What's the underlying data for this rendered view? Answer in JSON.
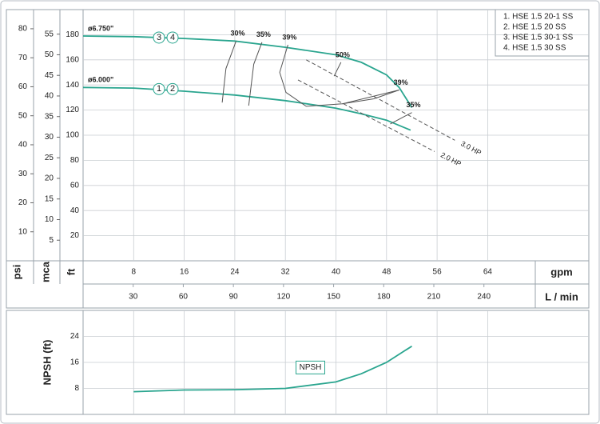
{
  "chart_data": [
    {
      "type": "line",
      "x_label": "gpm",
      "x2_label": "L / min",
      "y_label": "ft",
      "y2_label": "mca",
      "y3_label": "psi",
      "xlim": [
        0,
        80
      ],
      "xticks": [
        8,
        16,
        24,
        32,
        40,
        48,
        56,
        64
      ],
      "x2lim": [
        0,
        302.8
      ],
      "x2ticks": [
        30,
        60,
        90,
        120,
        150,
        180,
        210,
        240
      ],
      "ylim": [
        0,
        200
      ],
      "yticks": [
        20,
        40,
        60,
        80,
        100,
        120,
        140,
        160,
        180
      ],
      "y2lim": [
        0,
        60.96
      ],
      "y2ticks": [
        5,
        10,
        15,
        20,
        25,
        30,
        35,
        40,
        45,
        50,
        55
      ],
      "y3lim": [
        0,
        86.6
      ],
      "y3ticks": [
        10,
        20,
        30,
        40,
        50,
        60,
        70,
        80
      ],
      "grid": true,
      "legend": [
        "1. HSE 1.5 20-1 SS",
        "2. HSE 1.5 20 SS",
        "3. HSE 1.5 30-1 SS",
        "4. HSE 1.5 30 SS"
      ],
      "series": [
        {
          "name": "ø6.750\"",
          "tags": [
            "3",
            "4"
          ],
          "color": "#2aa58f",
          "style": "solid",
          "x": [
            0,
            8,
            16,
            24,
            32,
            40,
            44,
            48,
            50,
            52
          ],
          "values": [
            179,
            178.5,
            177,
            175,
            170,
            164,
            158,
            148,
            138,
            122
          ]
        },
        {
          "name": "ø6.000\"",
          "tags": [
            "1",
            "2"
          ],
          "color": "#2aa58f",
          "style": "solid",
          "x": [
            0,
            8,
            16,
            24,
            32,
            40,
            44,
            48,
            51.8
          ],
          "values": [
            138,
            137.5,
            135,
            132,
            127.5,
            121.5,
            117,
            112,
            104
          ]
        },
        {
          "name": "30%",
          "color": "#555555",
          "style": "thin",
          "x": [
            22,
            22.6,
            24.2
          ],
          "values": [
            126,
            153,
            175
          ]
        },
        {
          "name": "35%",
          "color": "#555555",
          "style": "thin",
          "x": [
            26.2,
            27,
            28.3
          ],
          "values": [
            123.5,
            156.5,
            174
          ]
        },
        {
          "name": "39%",
          "color": "#555555",
          "style": "thin",
          "x": [
            50,
            46,
            41,
            35.3,
            32.1,
            31.1,
            32.4
          ],
          "values": [
            136,
            129,
            125,
            123,
            134,
            150,
            172
          ]
        },
        {
          "name": "50%",
          "color": "#555555",
          "style": "thin",
          "x": [
            39.7,
            40.8
          ],
          "values": [
            147,
            158
          ]
        },
        {
          "name": "39%",
          "color": "#555555",
          "style": "thin",
          "x": [
            41,
            50
          ],
          "values": [
            125,
            136
          ]
        },
        {
          "name": "35%",
          "color": "#555555",
          "style": "thin",
          "x": [
            48.6,
            52
          ],
          "values": [
            109,
            118
          ]
        },
        {
          "name": "3.0 HP",
          "color": "#555555",
          "style": "dashed",
          "x": [
            35.3,
            58.8
          ],
          "values": [
            160,
            96
          ]
        },
        {
          "name": "2.0 HP",
          "color": "#555555",
          "style": "dashed",
          "x": [
            34,
            55.6
          ],
          "values": [
            144,
            87
          ]
        }
      ]
    },
    {
      "type": "line",
      "y_label": "NPSH (ft)",
      "xlim": [
        0,
        80
      ],
      "ylim": [
        0,
        32
      ],
      "yticks": [
        8,
        16,
        24
      ],
      "grid": true,
      "series": [
        {
          "name": "NPSH",
          "color": "#2aa58f",
          "style": "solid",
          "x": [
            8,
            16,
            24,
            32,
            40,
            44,
            48,
            52
          ],
          "values": [
            7,
            7.5,
            7.6,
            8,
            10,
            12.5,
            16,
            21
          ]
        }
      ]
    }
  ]
}
